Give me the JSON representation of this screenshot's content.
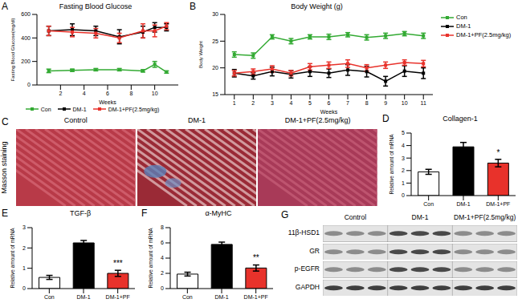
{
  "panel_labels": [
    "A",
    "B",
    "C",
    "D",
    "E",
    "F",
    "G"
  ],
  "chart_data": [
    {
      "type": "line",
      "title": "Fasting Blood Glucose",
      "x_label": "Weeks",
      "y_label": "Fasting Blood Glucose(mg/dl)",
      "x": [
        1,
        3,
        5,
        7,
        9,
        10,
        11
      ],
      "xlim": [
        0,
        12
      ],
      "xticks": [
        2,
        4,
        6,
        8,
        10
      ],
      "ylim": [
        0,
        600
      ],
      "yticks": [
        0,
        200,
        400,
        600
      ],
      "grid": false,
      "legend": "bottom",
      "series": [
        {
          "name": "Con",
          "color": "#33aa33",
          "marker": "square",
          "values": [
            120,
            125,
            130,
            130,
            120,
            175,
            110
          ],
          "errors": [
            15,
            10,
            10,
            10,
            10,
            25,
            10
          ]
        },
        {
          "name": "DM-1",
          "color": "#000000",
          "marker": "square",
          "values": [
            460,
            470,
            460,
            410,
            450,
            490,
            490
          ],
          "errors": [
            40,
            50,
            40,
            60,
            50,
            40,
            30
          ]
        },
        {
          "name": "DM-1+PF(2.5mg/kg)",
          "color": "#e8322b",
          "marker": "square",
          "values": [
            460,
            450,
            440,
            400,
            460,
            460,
            500
          ],
          "errors": [
            40,
            40,
            40,
            40,
            60,
            50,
            30
          ]
        }
      ]
    },
    {
      "type": "line",
      "title": "Body Weight (g)",
      "x_label": "Weeks",
      "y_label": "Body Weight",
      "x": [
        1,
        2,
        3,
        4,
        5,
        6,
        7,
        8,
        9,
        10,
        11
      ],
      "xlim": [
        0.5,
        11.5
      ],
      "xticks": [
        1,
        2,
        3,
        4,
        5,
        6,
        7,
        8,
        9,
        10,
        11
      ],
      "ylim": [
        15,
        30
      ],
      "yticks": [
        15,
        20,
        25,
        30
      ],
      "grid": false,
      "legend": "right",
      "series": [
        {
          "name": "Con",
          "color": "#33aa33",
          "marker": "square",
          "values": [
            22.5,
            22.3,
            25.8,
            25,
            25.8,
            25.8,
            26.2,
            25.7,
            26,
            26.4,
            26
          ],
          "errors": [
            0.5,
            0.5,
            0.4,
            0.5,
            0.4,
            0.5,
            0.4,
            0.5,
            0.5,
            0.4,
            0.5
          ]
        },
        {
          "name": "DM-1",
          "color": "#000000",
          "marker": "square",
          "values": [
            19,
            18.5,
            19.3,
            18.8,
            19.3,
            19,
            19.6,
            19.3,
            17.5,
            19.4,
            19
          ],
          "errors": [
            0.7,
            0.6,
            0.8,
            0.7,
            0.9,
            0.8,
            1,
            1,
            0.9,
            1,
            1
          ]
        },
        {
          "name": "DM-1+PF(2.5mg/kg)",
          "color": "#e8322b",
          "marker": "square",
          "values": [
            19,
            19.3,
            19.8,
            19,
            20.2,
            20.5,
            20.8,
            20,
            20.5,
            21,
            20.8
          ],
          "errors": [
            0.5,
            0.5,
            0.6,
            0.5,
            0.6,
            0.6,
            0.7,
            0.6,
            0.6,
            0.5,
            0.6
          ]
        }
      ]
    },
    {
      "type": "bar",
      "title": "Collagen-1",
      "y_label": "Relative amount of mRNA",
      "categories": [
        "Con",
        "DM-1",
        "DM-1+PF"
      ],
      "values": [
        1.9,
        3.9,
        2.6
      ],
      "errors": [
        0.2,
        0.35,
        0.3
      ],
      "significance": [
        null,
        null,
        "*"
      ],
      "colors": [
        "#ffffff",
        "#000000",
        "#e8322b"
      ],
      "ylim": [
        0,
        5
      ],
      "yticks": [
        0,
        1,
        2,
        3,
        4,
        5
      ],
      "grid": false
    },
    {
      "type": "bar",
      "title": "TGF-β",
      "y_label": "Relative amount of mRNA",
      "categories": [
        "Con",
        "DM-1",
        "DM-1+PF"
      ],
      "values": [
        0.55,
        2.25,
        0.75
      ],
      "errors": [
        0.1,
        0.12,
        0.15
      ],
      "significance": [
        null,
        null,
        "***"
      ],
      "colors": [
        "#ffffff",
        "#000000",
        "#e8322b"
      ],
      "ylim": [
        0,
        3
      ],
      "yticks": [
        0,
        1,
        2,
        3
      ],
      "grid": false
    },
    {
      "type": "bar",
      "title": "α-MyHC",
      "y_label": "Relative amount of mRNA",
      "categories": [
        "Con",
        "DM-1",
        "DM-1+PF"
      ],
      "values": [
        1.9,
        5.8,
        2.7
      ],
      "errors": [
        0.25,
        0.3,
        0.4
      ],
      "significance": [
        null,
        null,
        "**"
      ],
      "colors": [
        "#ffffff",
        "#000000",
        "#e8322b"
      ],
      "ylim": [
        0,
        8
      ],
      "yticks": [
        0,
        2,
        4,
        6,
        8
      ],
      "grid": false
    }
  ],
  "staining": {
    "title": "Masson staining",
    "labels": [
      "Control",
      "DM-1",
      "DM-1+PF(2.5mg/kg)"
    ]
  },
  "western_blot": {
    "columns": [
      "Control",
      "DM-1",
      "DM-1+PF(2.5mg/kg)"
    ],
    "rows": [
      "11β-HSD1",
      "GR",
      "p-EGFR",
      "GAPDH"
    ]
  }
}
